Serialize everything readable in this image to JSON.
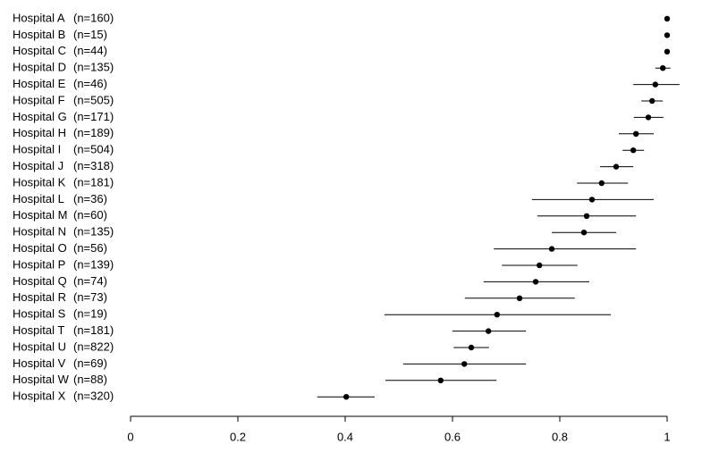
{
  "chart_data": {
    "type": "forest",
    "categories": [
      "Hospital A",
      "Hospital B",
      "Hospital C",
      "Hospital D",
      "Hospital E",
      "Hospital F",
      "Hospital G",
      "Hospital H",
      "Hospital I",
      "Hospital J",
      "Hospital K",
      "Hospital L",
      "Hospital M",
      "Hospital N",
      "Hospital O",
      "Hospital P",
      "Hospital Q",
      "Hospital R",
      "Hospital S",
      "Hospital T",
      "Hospital U",
      "Hospital V",
      "Hospital W",
      "Hospital X"
    ],
    "sample_sizes": [
      "(n=160)",
      "(n=15)",
      "(n=44)",
      "(n=135)",
      "(n=46)",
      "(n=505)",
      "(n=171)",
      "(n=189)",
      "(n=504)",
      "(n=318)",
      "(n=181)",
      "(n=36)",
      "(n=60)",
      "(n=135)",
      "(n=56)",
      "(n=139)",
      "(n=74)",
      "(n=73)",
      "(n=19)",
      "(n=181)",
      "(n=822)",
      "(n=69)",
      "(n=88)",
      "(n=320)"
    ],
    "values": [
      1.0,
      1.0,
      1.0,
      0.992,
      0.978,
      0.972,
      0.965,
      0.942,
      0.937,
      0.905,
      0.878,
      0.86,
      0.85,
      0.845,
      0.785,
      0.762,
      0.755,
      0.725,
      0.683,
      0.667,
      0.635,
      0.622,
      0.578,
      0.402
    ],
    "lower": [
      1.0,
      1.0,
      1.0,
      0.978,
      0.937,
      0.952,
      0.938,
      0.91,
      0.917,
      0.875,
      0.832,
      0.748,
      0.758,
      0.785,
      0.677,
      0.692,
      0.658,
      0.623,
      0.473,
      0.6,
      0.602,
      0.508,
      0.475,
      0.348
    ],
    "upper": [
      1.0,
      1.0,
      1.0,
      1.006,
      1.023,
      0.992,
      0.993,
      0.975,
      0.957,
      0.937,
      0.927,
      0.975,
      0.942,
      0.905,
      0.942,
      0.833,
      0.855,
      0.828,
      0.895,
      0.737,
      0.668,
      0.737,
      0.682,
      0.455
    ],
    "color": "#000000",
    "xlim": [
      0,
      1
    ],
    "xticks": [
      0,
      0.2,
      0.4,
      0.6,
      0.8,
      1
    ]
  }
}
